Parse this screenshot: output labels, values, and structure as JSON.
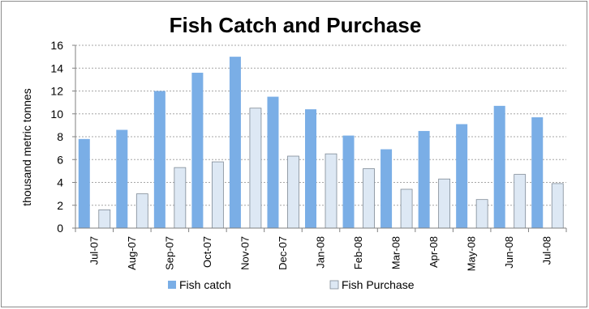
{
  "chart_data": {
    "type": "bar",
    "title": "Fish Catch and Purchase",
    "ylabel": "thousand metric tonnes",
    "xlabel": "",
    "ylim": [
      0,
      16
    ],
    "yticks": [
      0,
      2,
      4,
      6,
      8,
      10,
      12,
      14,
      16
    ],
    "grid": true,
    "legend_position": "bottom",
    "categories": [
      "Jul-07",
      "Aug-07",
      "Sep-07",
      "Oct-07",
      "Nov-07",
      "Dec-07",
      "Jan-08",
      "Feb-08",
      "Mar-08",
      "Apr-08",
      "May-08",
      "Jun-08",
      "Jul-08"
    ],
    "series": [
      {
        "name": "Fish catch",
        "color": "#7aaee6",
        "values": [
          7.8,
          8.6,
          12.0,
          13.6,
          15.0,
          11.5,
          10.4,
          8.1,
          6.9,
          8.5,
          9.1,
          10.7,
          9.7
        ]
      },
      {
        "name": "Fish Purchase",
        "color": "#dde8f4",
        "values": [
          1.6,
          3.0,
          5.3,
          5.8,
          10.5,
          6.3,
          6.5,
          5.2,
          3.4,
          4.3,
          2.5,
          4.7,
          3.9
        ]
      }
    ]
  }
}
